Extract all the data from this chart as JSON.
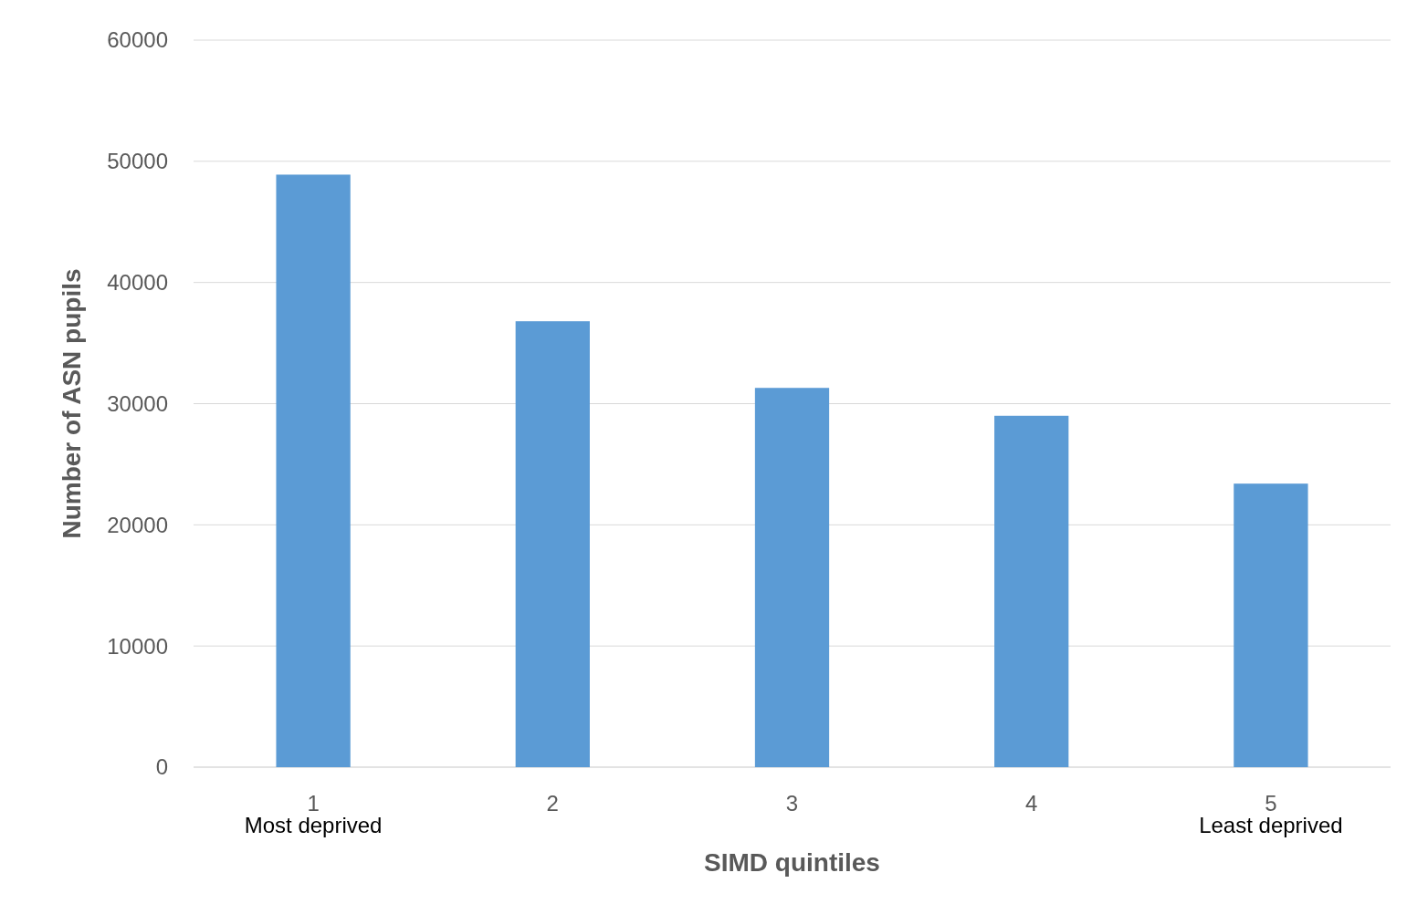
{
  "chart_data": {
    "type": "bar",
    "xlabel": "SIMD quintiles",
    "ylabel": "Number of ASN pupils",
    "categories": [
      "1",
      "2",
      "3",
      "4",
      "5"
    ],
    "values": [
      48900,
      36800,
      31300,
      29000,
      23400
    ],
    "color": "#5b9bd5",
    "ylim": [
      0,
      60000
    ],
    "yticks": [
      0,
      10000,
      20000,
      30000,
      40000,
      50000,
      60000
    ],
    "grid": "y",
    "annotations": [
      "Most deprived",
      "Least deprived"
    ]
  }
}
